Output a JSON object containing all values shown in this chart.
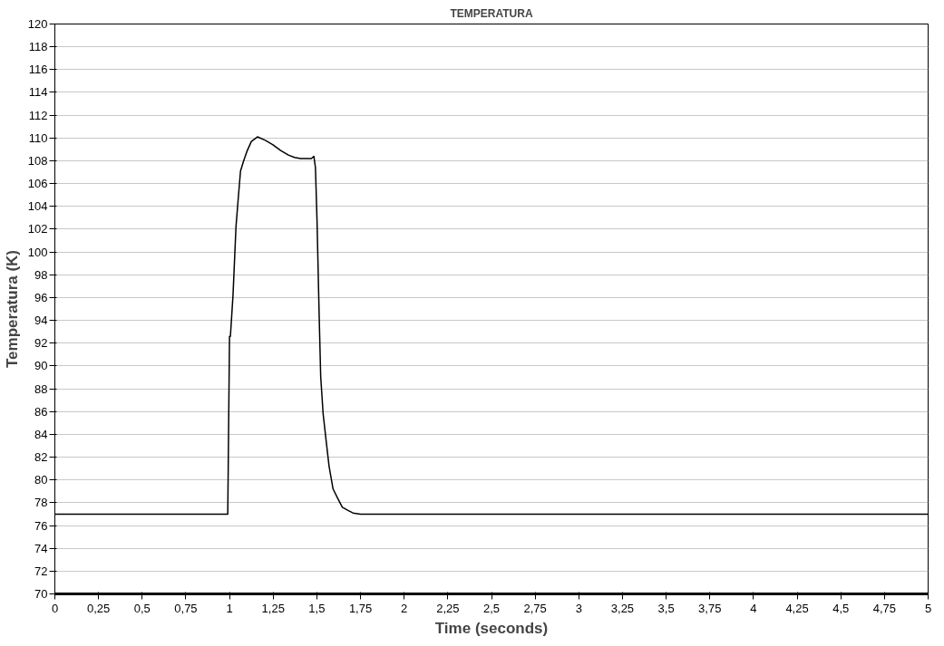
{
  "chart_data": {
    "type": "line",
    "title": "TEMPERATURA",
    "xlabel": "Time (seconds)",
    "ylabel": "Temperatura (K)",
    "x": [
      0,
      0.99,
      1.0,
      1.005,
      1.02,
      1.037,
      1.05,
      1.063,
      1.081,
      1.099,
      1.125,
      1.16,
      1.205,
      1.249,
      1.293,
      1.337,
      1.372,
      1.407,
      1.469,
      1.483,
      1.492,
      1.501,
      1.513,
      1.522,
      1.536,
      1.552,
      1.57,
      1.593,
      1.619,
      1.646,
      1.681,
      1.707,
      1.75,
      5
    ],
    "series": [
      {
        "color": "#000000",
        "values": [
          77,
          77,
          92.6,
          92.6,
          96.2,
          102.2,
          104.7,
          107.1,
          108,
          108.8,
          109.7,
          110.1,
          109.8,
          109.4,
          108.9,
          108.5,
          108.3,
          108.2,
          108.2,
          108.4,
          107.4,
          102.8,
          94.6,
          89.1,
          85.8,
          83.6,
          81.2,
          79.2,
          78.4,
          77.6,
          77.3,
          77.1,
          77,
          77
        ]
      }
    ],
    "xlim": [
      0,
      5
    ],
    "ylim": [
      70,
      120
    ],
    "xticks": [
      0,
      {
        "value": 0.25,
        "label": "0,25"
      },
      {
        "value": 0.5,
        "label": "0,5"
      },
      {
        "value": 0.75,
        "label": "0,75"
      },
      1,
      {
        "value": 1.25,
        "label": "1,25"
      },
      {
        "value": 1.5,
        "label": "1,5"
      },
      {
        "value": 1.75,
        "label": "1,75"
      },
      2,
      {
        "value": 2.25,
        "label": "2,25"
      },
      {
        "value": 2.5,
        "label": "2,5"
      },
      {
        "value": 2.75,
        "label": "2,75"
      },
      3,
      {
        "value": 3.25,
        "label": "3,25"
      },
      {
        "value": 3.5,
        "label": "3,5"
      },
      {
        "value": 3.75,
        "label": "3,75"
      },
      4,
      {
        "value": 4.25,
        "label": "4,25"
      },
      {
        "value": 4.5,
        "label": "4,5"
      },
      {
        "value": 4.75,
        "label": "4,75"
      },
      5
    ],
    "yticks": [
      70,
      72,
      74,
      76,
      78,
      80,
      82,
      84,
      86,
      88,
      90,
      92,
      94,
      96,
      98,
      100,
      102,
      104,
      106,
      108,
      110,
      112,
      114,
      116,
      118,
      120
    ],
    "grid": "y",
    "marker": "none",
    "line_style": "solid"
  }
}
